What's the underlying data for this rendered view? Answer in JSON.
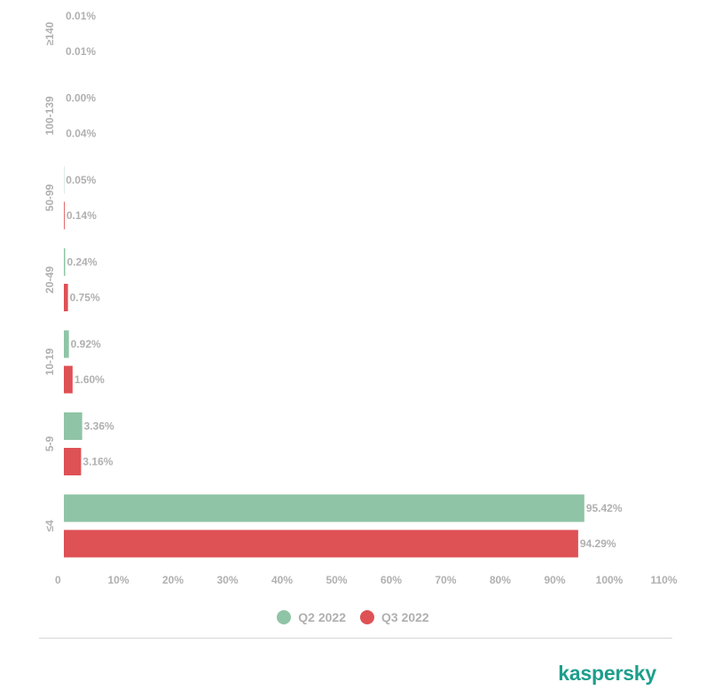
{
  "chart_data": {
    "type": "bar",
    "orientation": "horizontal",
    "categories": [
      "≥140",
      "100-139",
      "50-99",
      "20-49",
      "10-19",
      "5-9",
      "≤4"
    ],
    "series": [
      {
        "name": "Q2 2022",
        "color": "#8fc4a6",
        "values": [
          0.01,
          0.0,
          0.05,
          0.24,
          0.92,
          3.36,
          95.42
        ],
        "labels": [
          "0.01%",
          "0.00%",
          "0.05%",
          "0.24%",
          "0.92%",
          "3.36%",
          "95.42%"
        ]
      },
      {
        "name": "Q3 2022",
        "color": "#de5155",
        "values": [
          0.01,
          0.04,
          0.14,
          0.75,
          1.6,
          3.16,
          94.29
        ],
        "labels": [
          "0.01%",
          "0.04%",
          "0.14%",
          "0.75%",
          "1.60%",
          "3.16%",
          "94.29%"
        ]
      }
    ],
    "xlim": [
      0,
      110
    ],
    "x_ticks": [
      0,
      10,
      20,
      30,
      40,
      50,
      60,
      70,
      80,
      90,
      100,
      110
    ],
    "x_tick_labels": [
      "0",
      "10%",
      "20%",
      "30%",
      "40%",
      "50%",
      "60%",
      "70%",
      "80%",
      "90%",
      "100%",
      "110%"
    ],
    "title": "",
    "xlabel": "",
    "ylabel": "",
    "grid": false,
    "legend_position": "bottom-center"
  },
  "legend": {
    "items": [
      {
        "label": "Q2 2022",
        "color": "#8fc4a6"
      },
      {
        "label": "Q3 2022",
        "color": "#de5155"
      }
    ]
  },
  "brand": {
    "name": "kaspersky",
    "color": "#1d9e8b"
  }
}
